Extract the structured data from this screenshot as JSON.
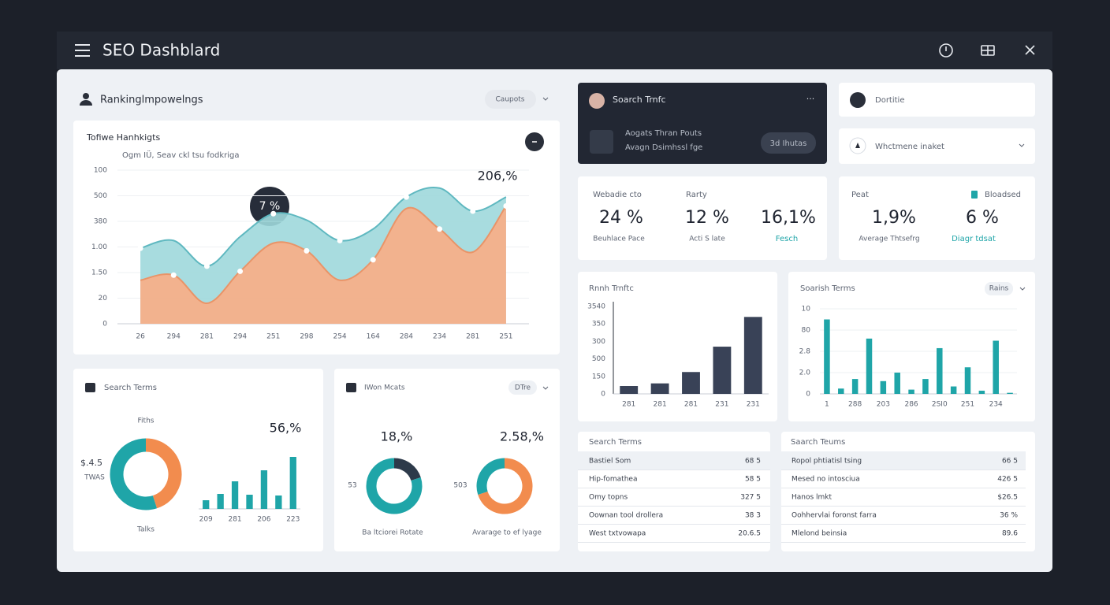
{
  "header": {
    "title": "SEO Dashblard"
  },
  "ranking": {
    "title": "Rankinglmpowelngs",
    "dropdown": "Caupots",
    "chart": {
      "type": "area",
      "title": "Tofiwe Hanhkigts",
      "subtitle": "Ogm IÜ, Seav ckl tsu fodkriga",
      "categories": [
        "26",
        "294",
        "281",
        "294",
        "251",
        "298",
        "254",
        "164",
        "284",
        "234",
        "281",
        "251"
      ],
      "series": [
        {
          "color": "#9fd8dc",
          "values": [
            295,
            325,
            225,
            340,
            430,
            405,
            325,
            370,
            495,
            530,
            440,
            495
          ]
        },
        {
          "color": "#f9ad85",
          "values": [
            170,
            190,
            80,
            205,
            315,
            285,
            170,
            250,
            450,
            370,
            280,
            460
          ]
        }
      ],
      "ylim": [
        0,
        600
      ],
      "yticks": [
        0,
        {
          "value": 100,
          "label": "20"
        },
        {
          "value": 200,
          "label": "1.50"
        },
        {
          "value": 300,
          "label": "1.00"
        },
        {
          "value": 400,
          "label": "380"
        },
        500,
        {
          "value": 600,
          "label": "100"
        }
      ],
      "annotations": [
        "7 %",
        "206,%"
      ]
    }
  },
  "search_terms": {
    "title": "Search Terms",
    "donut_top": "Fiths",
    "donut_bottom": "Talks",
    "left_value": "$.4.5",
    "left_label": "TWAS",
    "percent": "56,%",
    "donut": {
      "type": "donut",
      "values": [
        45,
        55
      ],
      "colors": [
        "#f28c4e",
        "#1fa5a8"
      ]
    },
    "bars": {
      "type": "bar",
      "categories": [
        "209",
        null,
        "281",
        null,
        "206",
        null,
        "223"
      ],
      "values": [
        11,
        19,
        35,
        18,
        49,
        17,
        66
      ],
      "color": "#1fa5a8"
    }
  },
  "won_mcats": {
    "title": "IWon Mcats",
    "dropdown": "DTre",
    "left": {
      "percent": "18,%",
      "side": "53",
      "caption": "Ba ltciorei Rotate",
      "donut": {
        "type": "donut",
        "values": [
          20,
          80
        ],
        "colors": [
          "#2d3a4a",
          "#1fa5a8"
        ]
      }
    },
    "right": {
      "percent": "2.58,%",
      "side": "503",
      "caption": "Avarage to ef lyage",
      "donut": {
        "type": "donut",
        "values": [
          70,
          30
        ],
        "colors": [
          "#f28c4e",
          "#1fa5a8"
        ]
      }
    }
  },
  "traffic_card": {
    "title": "Soarch Trnfc",
    "line1": "Aogats Thran Pouts",
    "line2": "Avagn Dsimhssl fge",
    "button": "3d Ihutas"
  },
  "side_items": [
    "Dortitie",
    "Whctmene inaket"
  ],
  "stats_left": {
    "headers": [
      "Webadie cto",
      "Rarty"
    ],
    "values": [
      "24 %",
      "12 %",
      "16,1%"
    ],
    "captions": [
      "Beuhlace Pace",
      "Acti S late",
      "Fesch"
    ]
  },
  "stats_right": {
    "headers": [
      "Peat",
      "Bloadsed"
    ],
    "values": [
      "1,9%",
      "6 %"
    ],
    "captions": [
      "Average Thtsefrg",
      "Diagr tdsat"
    ]
  },
  "traffic_chart": {
    "type": "bar",
    "title": "Rnnh Trnftc",
    "categories": [
      "281",
      "281",
      "281",
      "231",
      "231"
    ],
    "values": [
      45,
      60,
      125,
      270,
      440
    ],
    "color": "#394257",
    "ylim": [
      0,
      500
    ],
    "yticks": [
      0,
      {
        "value": 100,
        "label": "150"
      },
      {
        "value": 200,
        "label": "500"
      },
      300,
      {
        "value": 400,
        "label": "350"
      },
      {
        "value": 500,
        "label": "3540"
      }
    ]
  },
  "terms_chart": {
    "type": "bar",
    "title": "Soarish Terms",
    "dropdown": "Rains",
    "categories": [
      "1",
      null,
      "288",
      null,
      "203",
      null,
      "286",
      null,
      "2SI0",
      null,
      "251",
      null,
      "234",
      null
    ],
    "values": [
      3.5,
      0.25,
      0.7,
      2.6,
      0.6,
      1.0,
      0.2,
      0.7,
      2.15,
      0.35,
      1.25,
      0.15,
      2.5,
      0.05
    ],
    "color": "#1fa5a8",
    "ylim": [
      0,
      4
    ],
    "yticks": [
      0,
      {
        "value": 1,
        "label": "2.0"
      },
      {
        "value": 2,
        "label": "2.8"
      },
      {
        "value": 3,
        "label": "80"
      },
      {
        "value": 4,
        "label": "10"
      }
    ]
  },
  "tables": [
    {
      "title": "Search Terms",
      "rows": [
        [
          "Bastiel Som",
          "68 5"
        ],
        [
          "Hip-fomathea",
          "58 5"
        ],
        [
          "Omy topns",
          "327 5"
        ],
        [
          "Oownan tool drollera",
          "38 3"
        ],
        [
          "West txtvowapa",
          "20.6.5"
        ]
      ]
    },
    {
      "title": "Saarch Teums",
      "rows": [
        [
          "Ropol phtiatisl tsing",
          "66 5"
        ],
        [
          "Mesed no intosciua",
          "426 5"
        ],
        [
          "Hanos lmkt",
          "$26.5"
        ],
        [
          "Oohhervlai foronst farra",
          "36 %"
        ],
        [
          "Mlelond beinsia",
          "89.6"
        ]
      ]
    }
  ]
}
